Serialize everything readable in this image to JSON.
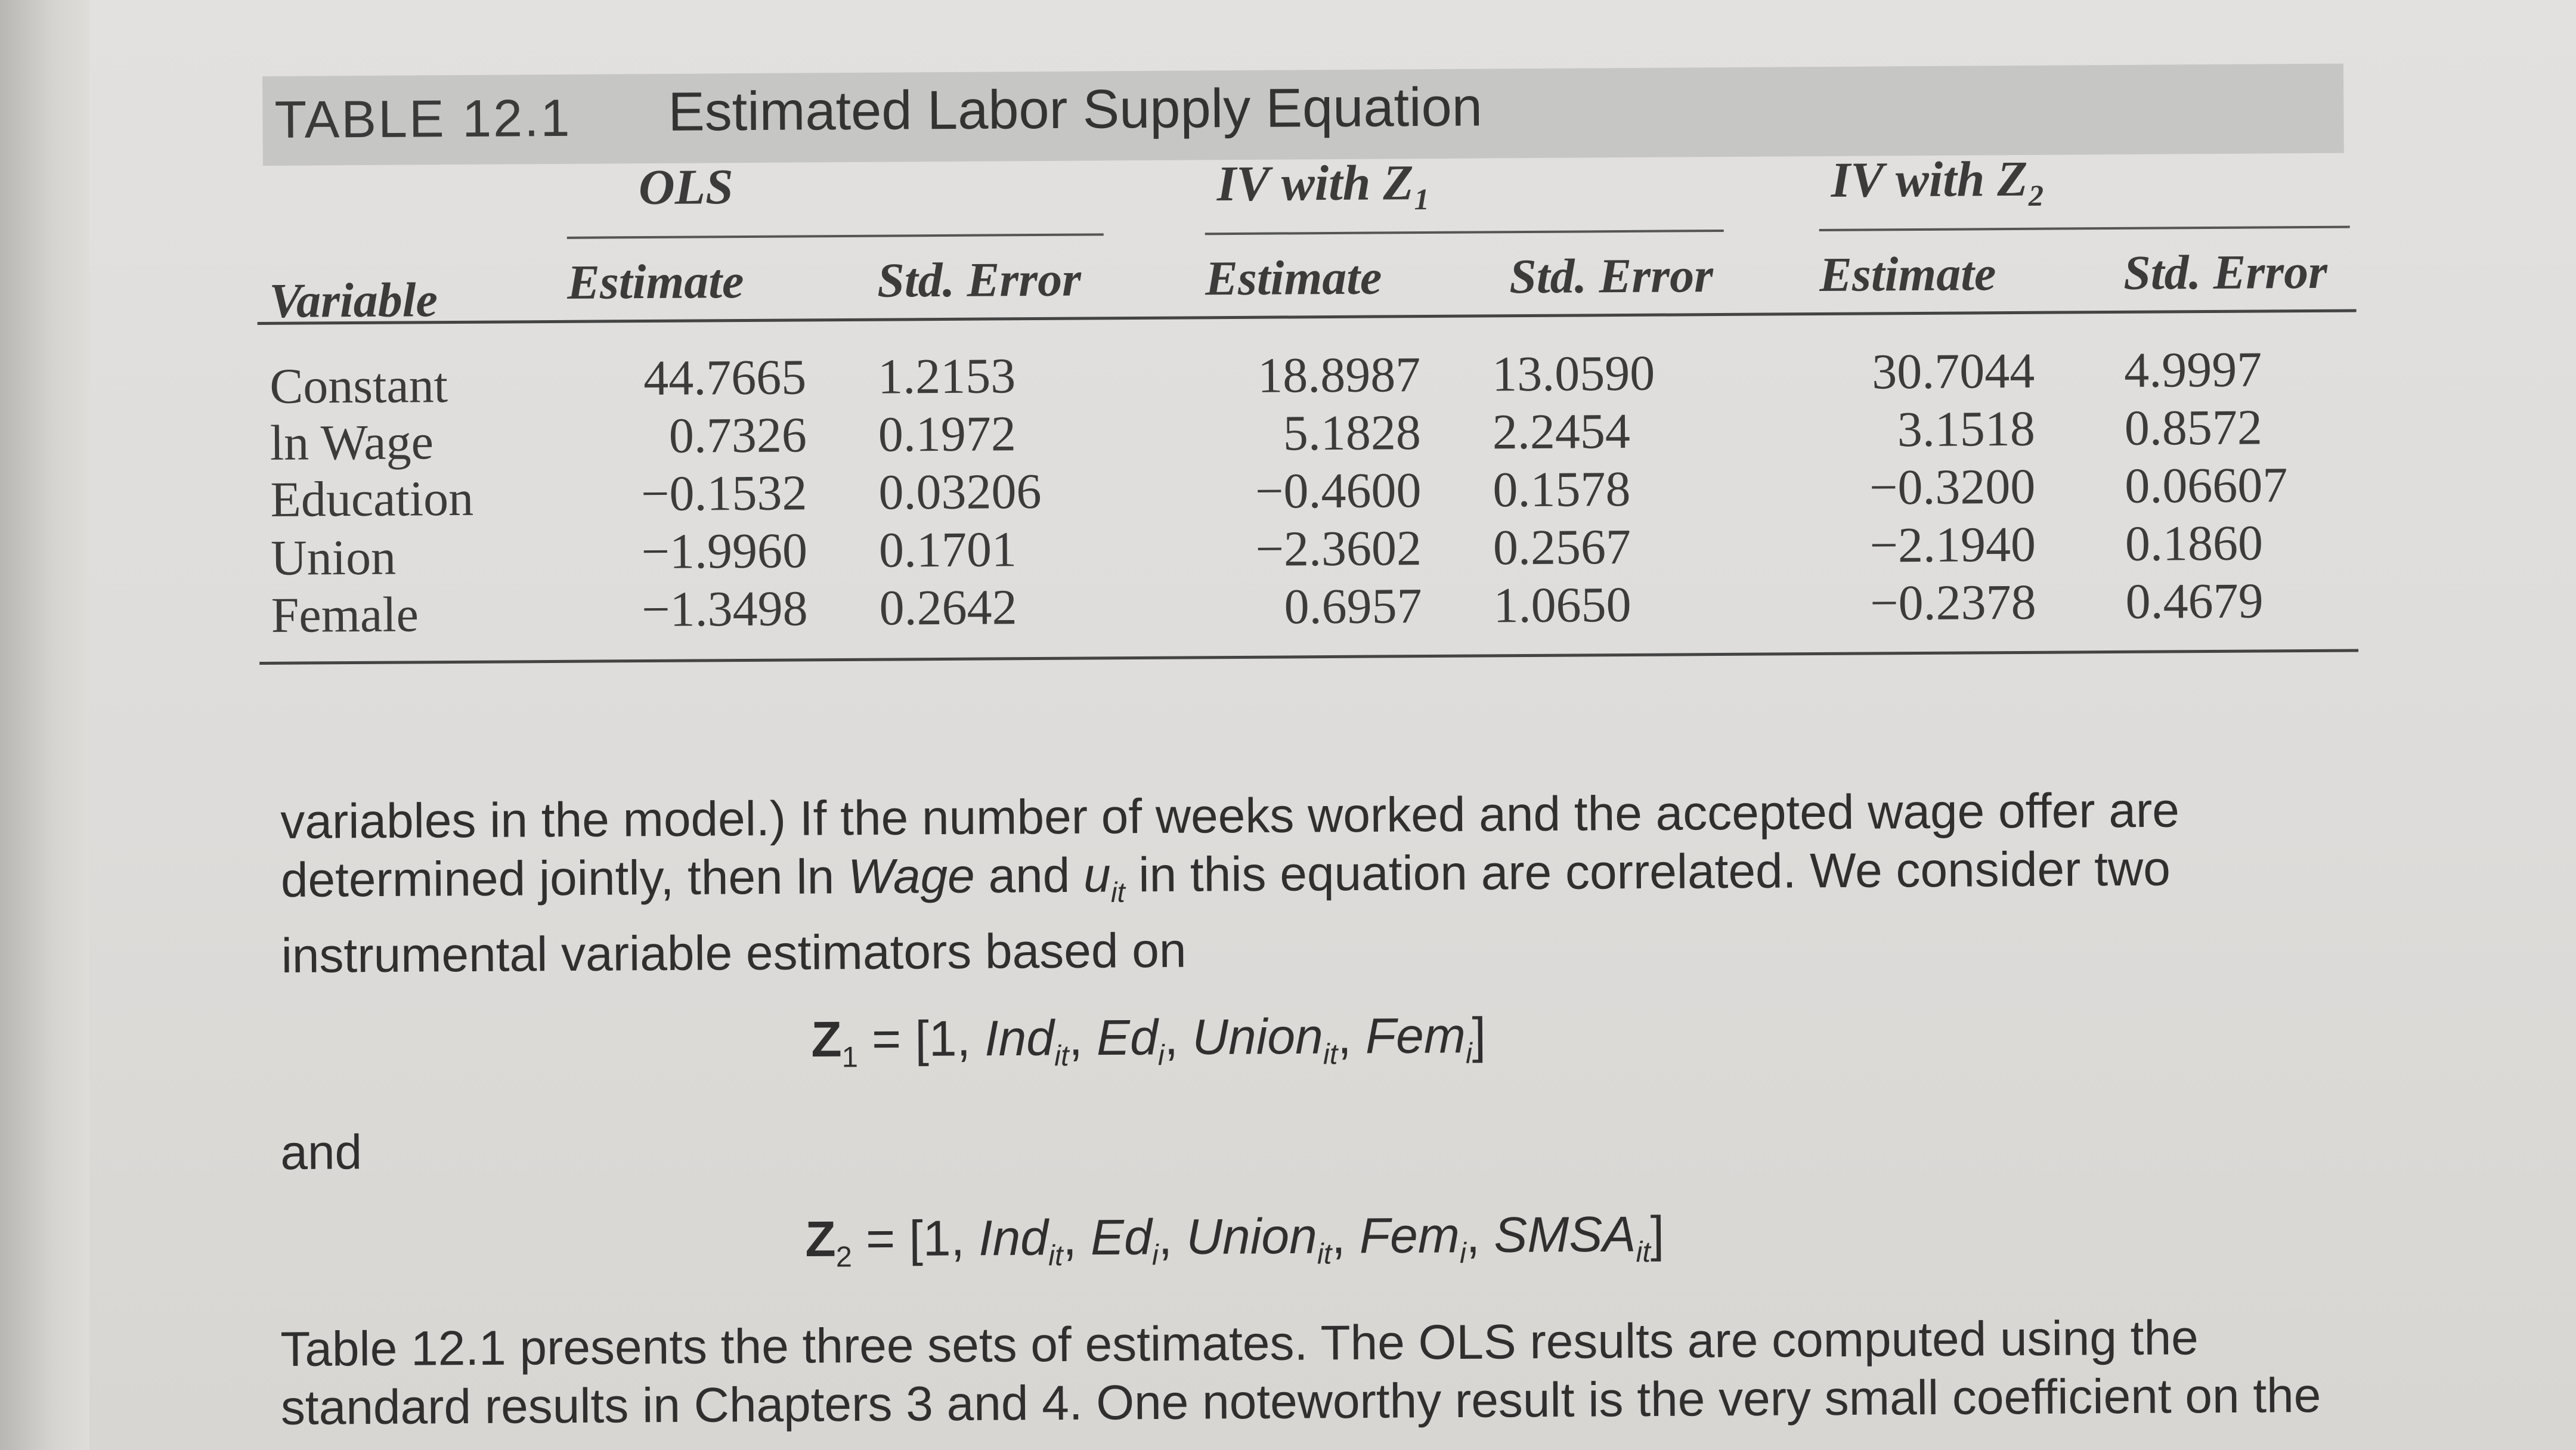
{
  "table": {
    "number": "TABLE 12.1",
    "title": "Estimated Labor Supply Equation",
    "groups": [
      "OLS",
      "IV with Z₁",
      "IV with Z₂"
    ],
    "variable_header": "Variable",
    "column_headers": [
      "Estimate",
      "Std. Error",
      "Estimate",
      "Std. Error",
      "Estimate",
      "Std. Error"
    ],
    "rows": [
      {
        "label": "Constant",
        "values": [
          "44.7665",
          "1.2153",
          "18.8987",
          "13.0590",
          "30.7044",
          "4.9997"
        ]
      },
      {
        "label": "ln Wage",
        "values": [
          "0.7326",
          "0.1972",
          "5.1828",
          "2.2454",
          "3.1518",
          "0.8572"
        ]
      },
      {
        "label": "Education",
        "values": [
          "−0.1532",
          "0.03206",
          "−0.4600",
          "0.1578",
          "−0.3200",
          "0.06607"
        ]
      },
      {
        "label": "Union",
        "values": [
          "−1.9960",
          "0.1701",
          "−2.3602",
          "0.2567",
          "−2.1940",
          "0.1860"
        ]
      },
      {
        "label": "Female",
        "values": [
          "−1.3498",
          "0.2642",
          "0.6957",
          "1.0650",
          "−0.2378",
          "0.4679"
        ]
      }
    ]
  },
  "text": {
    "para1_a": "variables in the model.) If the number of weeks worked and the accepted wage offer are determined jointly, then ln ",
    "para1_wage": "Wage",
    "para1_b": " and ",
    "para1_u": "u",
    "para1_u_sub": "it",
    "para1_c": " in this equation are correlated. We consider two instrumental variable estimators based on",
    "and": "and",
    "para2": "Table 12.1 presents the three sets of estimates. The OLS results are computed using the standard results in Chapters 3 and 4. One noteworthy result is the very small coefficient on the"
  },
  "equations": {
    "z1": {
      "lhs": "Z",
      "lhs_sub": "1",
      "eqsign": " = [1, ",
      "t1": "Ind",
      "t1_sub": "it",
      "sep1": ", ",
      "t2": "Ed",
      "t2_sub": "i",
      "sep2": ", ",
      "t3": "Union",
      "t3_sub": "it",
      "sep3": ", ",
      "t4": "Fem",
      "t4_sub": "i",
      "close": "]"
    },
    "z2": {
      "lhs": "Z",
      "lhs_sub": "2",
      "eqsign": " = [1, ",
      "t1": "Ind",
      "t1_sub": "it",
      "sep1": ", ",
      "t2": "Ed",
      "t2_sub": "i",
      "sep2": ", ",
      "t3": "Union",
      "t3_sub": "it",
      "sep3": ", ",
      "t4": "Fem",
      "t4_sub": "i",
      "sep4": ", ",
      "t5": "SMSA",
      "t5_sub": "it",
      "close": "]"
    }
  }
}
